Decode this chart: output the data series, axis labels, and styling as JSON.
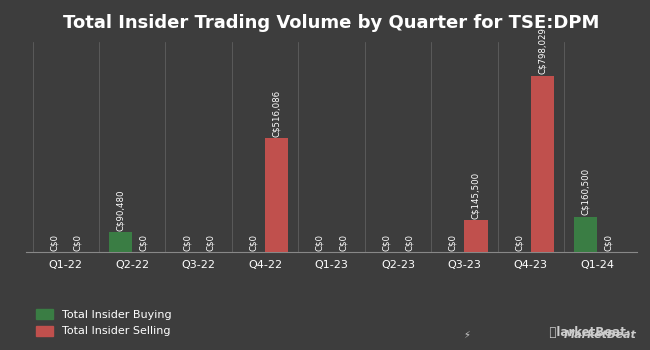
{
  "title": "Total Insider Trading Volume by Quarter for TSE:DPM",
  "quarters": [
    "Q1-22",
    "Q2-22",
    "Q3-22",
    "Q4-22",
    "Q1-23",
    "Q2-23",
    "Q3-23",
    "Q4-23",
    "Q1-24"
  ],
  "buying": [
    0,
    90480,
    0,
    0,
    0,
    0,
    0,
    0,
    160500
  ],
  "selling": [
    0,
    0,
    0,
    516086,
    0,
    0,
    145500,
    798029,
    0
  ],
  "buy_color": "#3a7d44",
  "sell_color": "#c0504d",
  "background_color": "#3d3d3d",
  "text_color": "#ffffff",
  "bar_width": 0.35,
  "ylim": [
    0,
    950000
  ],
  "legend_buy": "Total Insider Buying",
  "legend_sell": "Total Insider Selling",
  "title_fontsize": 13,
  "label_fontsize": 6.2,
  "tick_fontsize": 8,
  "legend_fontsize": 8
}
